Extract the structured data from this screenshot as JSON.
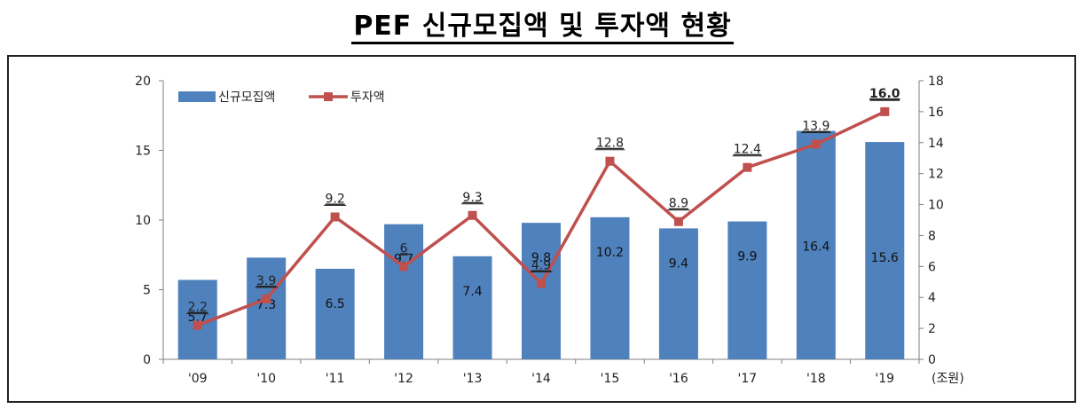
{
  "page_title": "PEF 신규모집액 및 투자액 현황",
  "colors": {
    "bar": "#4f81bd",
    "line": "#c0504d",
    "axis": "#7f7f7f"
  },
  "chart_data": {
    "type": "bar",
    "categories": [
      "'09",
      "'10",
      "'11",
      "'12",
      "'13",
      "'14",
      "'15",
      "'16",
      "'17",
      "'18",
      "'19"
    ],
    "unit_label": "(조원)",
    "series": [
      {
        "name": "신규모집액",
        "type": "bar",
        "axis": "left",
        "values": [
          5.7,
          7.3,
          6.5,
          9.7,
          7.4,
          9.8,
          10.2,
          9.4,
          9.9,
          16.4,
          15.6
        ],
        "labels": [
          "5.7",
          "7.3",
          "6.5",
          "9.7",
          "7.4",
          "9.8",
          "10.2",
          "9.4",
          "9.9",
          "16.4",
          "15.6"
        ]
      },
      {
        "name": "투자액",
        "type": "line",
        "axis": "right",
        "values": [
          2.2,
          3.9,
          9.2,
          6,
          9.3,
          4.9,
          12.8,
          8.9,
          12.4,
          13.9,
          16.0
        ],
        "labels": [
          "2.2",
          "3.9",
          "9.2",
          "6",
          "9.3",
          "4.9",
          "12.8",
          "8.9",
          "12.4",
          "13.9",
          "16.0"
        ]
      }
    ],
    "y_left": {
      "min": 0,
      "max": 20,
      "ticks": [
        "0",
        "5",
        "10",
        "15",
        "20"
      ]
    },
    "y_right": {
      "min": 0,
      "max": 18,
      "ticks": [
        "0",
        "2",
        "4",
        "6",
        "8",
        "10",
        "12",
        "14",
        "16",
        "18"
      ]
    },
    "grid": false,
    "legend": "top-left"
  }
}
